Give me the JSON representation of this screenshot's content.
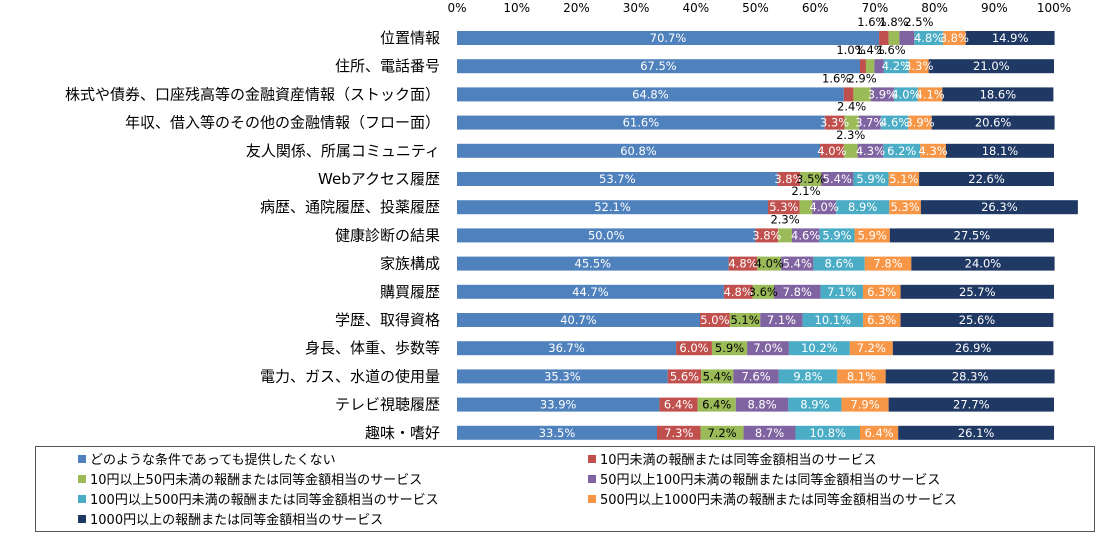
{
  "chart_data": {
    "type": "bar",
    "orientation": "horizontal",
    "stacked": true,
    "x_ticks": [
      "0%",
      "10%",
      "20%",
      "30%",
      "40%",
      "50%",
      "60%",
      "70%",
      "80%",
      "90%",
      "100%"
    ],
    "xlim": [
      0,
      100
    ],
    "grid": false,
    "legend_position": "bottom",
    "categories": [
      "位置情報",
      "住所、電話番号",
      "株式や債券、口座残高等の金融資産情報（ストック面）",
      "年収、借入等のその他の金融情報（フロー面）",
      "友人関係、所属コミュニティ",
      "Webアクセス履歴",
      "病歴、通院履歴、投薬履歴",
      "健康診断の結果",
      "家族構成",
      "購買履歴",
      "学歴、取得資格",
      "身長、体重、歩数等",
      "電力、ガス、水道の使用量",
      "テレビ視聴履歴",
      "趣味・嗜好"
    ],
    "series": [
      {
        "name": "どのような条件であっても提供したくない",
        "color": "#4f81bd",
        "values": [
          70.7,
          67.5,
          64.8,
          61.6,
          60.8,
          53.7,
          52.1,
          50.0,
          45.5,
          44.7,
          40.7,
          36.7,
          35.3,
          33.9,
          33.5
        ]
      },
      {
        "name": "10円未満の報酬または同等金額相当のサービス",
        "color": "#c0504d",
        "values": [
          1.6,
          1.0,
          1.6,
          3.3,
          4.0,
          3.8,
          5.3,
          3.8,
          4.8,
          4.8,
          5.0,
          6.0,
          5.6,
          6.4,
          7.3
        ]
      },
      {
        "name": "10円以上50円未満の報酬または同等金額相当のサービス",
        "color": "#9bbb59",
        "values": [
          1.8,
          1.4,
          2.9,
          2.4,
          2.3,
          3.5,
          2.1,
          2.3,
          4.0,
          3.6,
          5.1,
          5.9,
          5.4,
          6.4,
          7.2
        ]
      },
      {
        "name": "50円以上100円未満の報酬または同等金額相当のサービス",
        "color": "#8064a2",
        "values": [
          2.5,
          1.6,
          3.9,
          3.7,
          4.3,
          5.4,
          4.0,
          4.6,
          5.4,
          7.8,
          7.1,
          7.0,
          7.6,
          8.8,
          8.7
        ]
      },
      {
        "name": "100円以上500円未満の報酬または同等金額相当のサービス",
        "color": "#4bacc6",
        "values": [
          4.8,
          4.2,
          4.0,
          4.6,
          6.2,
          5.9,
          8.9,
          5.9,
          8.6,
          7.1,
          10.1,
          10.2,
          9.8,
          8.9,
          10.8
        ]
      },
      {
        "name": "500円以上1000円未満の報酬または同等金額相当のサービス",
        "color": "#f79646",
        "values": [
          3.8,
          3.3,
          4.1,
          3.9,
          4.3,
          5.1,
          5.3,
          5.9,
          7.8,
          6.3,
          6.3,
          7.2,
          8.1,
          7.9,
          6.4
        ]
      },
      {
        "name": "1000円以上の報酬または同等金額相当のサービス",
        "color": "#1f3864",
        "values": [
          14.9,
          21.0,
          18.6,
          20.6,
          18.1,
          22.6,
          26.3,
          27.5,
          24.0,
          25.7,
          25.6,
          26.9,
          28.3,
          27.7,
          26.1
        ]
      }
    ],
    "data_labels": [
      [
        "70.7%",
        "1.6%",
        "1.8%",
        "2.5%",
        "4.8%",
        "3.8%",
        "14.9%"
      ],
      [
        "67.5%",
        "1.0%",
        "1.4%",
        "1.6%",
        "4.2%",
        "3.3%",
        "21.0%"
      ],
      [
        "64.8%",
        "1.6%",
        "2.9%",
        "3.9%",
        "4.0%",
        "4.1%",
        "18.6%"
      ],
      [
        "61.6%",
        "3.3%",
        "2.4%",
        "3.7%",
        "4.6%",
        "3.9%",
        "20.6%"
      ],
      [
        "60.8%",
        "4.0%",
        "2.3%",
        "4.3%",
        "6.2%",
        "4.3%",
        "18.1%"
      ],
      [
        "53.7%",
        "3.8%",
        "3.5%",
        "5.4%",
        "5.9%",
        "5.1%",
        "22.6%"
      ],
      [
        "52.1%",
        "5.3%",
        "2.1%",
        "4.0%",
        "8.9%",
        "5.3%",
        "26.3%"
      ],
      [
        "50.0%",
        "3.8%",
        "2.3%",
        "4.6%",
        "5.9%",
        "5.9%",
        "27.5%"
      ],
      [
        "45.5%",
        "4.8%",
        "4.0%",
        "5.4%",
        "8.6%",
        "7.8%",
        "24.0%"
      ],
      [
        "44.7%",
        "4.8%",
        "3.6%",
        "7.8%",
        "7.1%",
        "6.3%",
        "25.7%"
      ],
      [
        "40.7%",
        "5.0%",
        "5.1%",
        "7.1%",
        "10.1%",
        "6.3%",
        "25.6%"
      ],
      [
        "36.7%",
        "6.0%",
        "5.9%",
        "7.0%",
        "10.2%",
        "7.2%",
        "26.9%"
      ],
      [
        "35.3%",
        "5.6%",
        "5.4%",
        "7.6%",
        "9.8%",
        "8.1%",
        "28.3%"
      ],
      [
        "33.9%",
        "6.4%",
        "6.4%",
        "8.8%",
        "8.9%",
        "7.9%",
        "27.7%"
      ],
      [
        "33.5%",
        "7.3%",
        "7.2%",
        "8.7%",
        "10.8%",
        "6.4%",
        "26.1%"
      ]
    ]
  }
}
